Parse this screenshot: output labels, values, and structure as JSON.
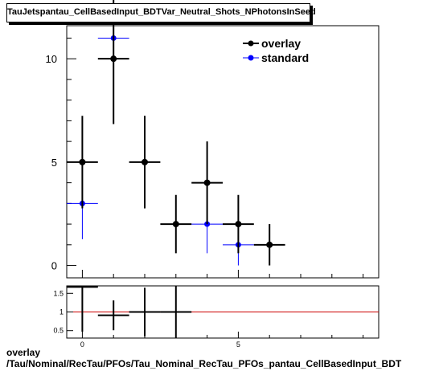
{
  "title": "TauJetspantau_CellBasedInput_BDTVar_Neutral_Shots_NPhotonsInSeed",
  "footer": {
    "line1": "overlay",
    "line2": "/Tau/Nominal/RecTau/PFOs/Tau_Nominal_RecTau_PFOs_pantau_CellBasedInput_BDT"
  },
  "colors": {
    "overlay": "#000000",
    "standard": "#0000ff",
    "ratio_line": "#cc0000"
  },
  "chart_data": [
    {
      "type": "scatter",
      "xlim": [
        -0.5,
        9.5
      ],
      "ylim": [
        -0.6,
        11.6
      ],
      "yticks": [
        0,
        5,
        10
      ],
      "legend_position": "top-right",
      "grid": false,
      "series": [
        {
          "name": "overlay",
          "color": "#000000",
          "x": [
            0,
            1,
            2,
            3,
            4,
            5,
            6
          ],
          "y": [
            5,
            10,
            5,
            2,
            4,
            2,
            1
          ],
          "xerr": [
            0.5,
            0.5,
            0.5,
            0.5,
            0.5,
            0.5,
            0.5
          ],
          "yerr": [
            2.24,
            3.16,
            2.24,
            1.41,
            2.0,
            1.41,
            1.0
          ]
        },
        {
          "name": "standard",
          "color": "#0000ff",
          "x": [
            0,
            1,
            4,
            5
          ],
          "y": [
            3,
            11,
            2,
            1
          ],
          "xerr": [
            0.5,
            0.5,
            0.5,
            0.5
          ],
          "yerr": [
            1.73,
            0.3,
            1.41,
            1.0
          ]
        }
      ]
    },
    {
      "type": "scatter",
      "xlim": [
        -0.5,
        9.5
      ],
      "ylim": [
        0.3,
        1.7
      ],
      "yticks": [
        0.5,
        1,
        1.5
      ],
      "ytick_labels": [
        "0.5",
        "1",
        "1.5"
      ],
      "xticks": [
        0,
        5
      ],
      "xtick_labels": [
        "0",
        "5"
      ],
      "reference_line": 1,
      "series": [
        {
          "name": "ratio",
          "x": [
            0,
            1,
            2,
            3
          ],
          "y": [
            1.67,
            0.91,
            1.0,
            1.0
          ],
          "xerr": [
            0.5,
            0.5,
            0.5,
            0.5
          ],
          "yerr": [
            1.2,
            0.4,
            0.65,
            0.7
          ]
        }
      ]
    }
  ]
}
